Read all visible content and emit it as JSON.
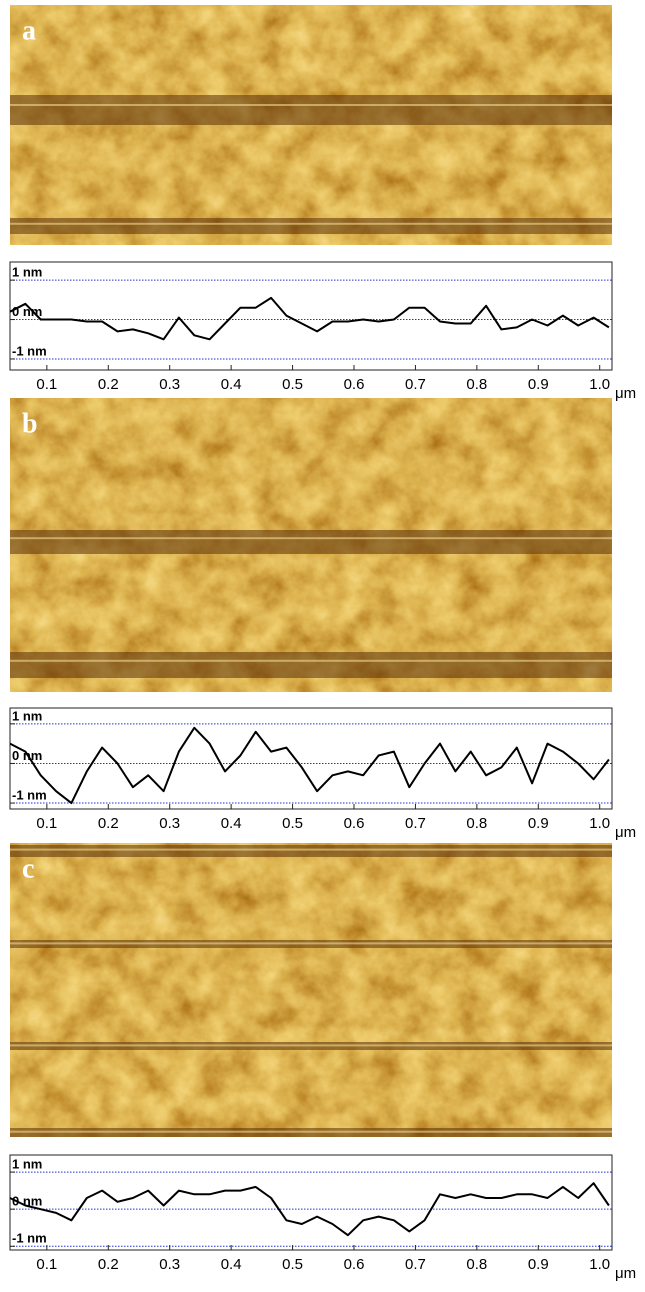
{
  "chart_data": [
    {
      "type": "line",
      "panel_label": "a",
      "xlabel": "μm",
      "color": "#000000",
      "grid": true,
      "grid_color": "#2233cc",
      "x": [
        0.04,
        0.065,
        0.09,
        0.115,
        0.14,
        0.165,
        0.19,
        0.215,
        0.24,
        0.265,
        0.29,
        0.315,
        0.34,
        0.365,
        0.39,
        0.415,
        0.44,
        0.465,
        0.49,
        0.515,
        0.54,
        0.565,
        0.59,
        0.615,
        0.64,
        0.665,
        0.69,
        0.715,
        0.74,
        0.765,
        0.79,
        0.815,
        0.84,
        0.865,
        0.89,
        0.915,
        0.94,
        0.965,
        0.99,
        1.015
      ],
      "values": [
        0.2,
        0.4,
        0.0,
        0.0,
        0.0,
        -0.05,
        -0.05,
        -0.3,
        -0.25,
        -0.35,
        -0.5,
        0.05,
        -0.4,
        -0.5,
        -0.1,
        0.3,
        0.3,
        0.55,
        0.1,
        -0.1,
        -0.3,
        -0.05,
        -0.05,
        0.0,
        -0.05,
        0.0,
        0.3,
        0.3,
        -0.05,
        -0.1,
        -0.1,
        0.35,
        -0.25,
        -0.2,
        0.0,
        -0.15,
        0.1,
        -0.15,
        0.05,
        -0.2
      ],
      "xlim": [
        0.04,
        1.02
      ],
      "ylim": [
        -1.28,
        1.46
      ],
      "xticks": [
        0.1,
        0.2,
        0.3,
        0.4,
        0.5,
        0.6,
        0.7,
        0.8,
        0.9,
        {
          "value": 1.0,
          "label": "1.0"
        }
      ],
      "yticks": [
        {
          "value": 1,
          "label": "1 nm"
        },
        {
          "value": 0,
          "label": "0 nm"
        },
        {
          "value": -1,
          "label": "-1 nm"
        }
      ]
    },
    {
      "type": "line",
      "panel_label": "b",
      "xlabel": "μm",
      "color": "#000000",
      "grid": true,
      "grid_color": "#2233cc",
      "x": [
        0.04,
        0.065,
        0.09,
        0.115,
        0.14,
        0.165,
        0.19,
        0.215,
        0.24,
        0.265,
        0.29,
        0.315,
        0.34,
        0.365,
        0.39,
        0.415,
        0.44,
        0.465,
        0.49,
        0.515,
        0.54,
        0.565,
        0.59,
        0.615,
        0.64,
        0.665,
        0.69,
        0.715,
        0.74,
        0.765,
        0.79,
        0.815,
        0.84,
        0.865,
        0.89,
        0.915,
        0.94,
        0.965,
        0.99,
        1.015
      ],
      "values": [
        0.5,
        0.3,
        -0.3,
        -0.7,
        -1.0,
        -0.2,
        0.4,
        0.0,
        -0.6,
        -0.3,
        -0.7,
        0.3,
        0.9,
        0.5,
        -0.2,
        0.2,
        0.8,
        0.3,
        0.4,
        -0.1,
        -0.7,
        -0.3,
        -0.2,
        -0.3,
        0.2,
        0.3,
        -0.6,
        0.0,
        0.5,
        -0.2,
        0.3,
        -0.3,
        -0.1,
        0.4,
        -0.5,
        0.5,
        0.3,
        0.0,
        -0.4,
        0.1
      ],
      "xlim": [
        0.04,
        1.02
      ],
      "ylim": [
        -1.15,
        1.4
      ],
      "xticks": [
        0.1,
        0.2,
        0.3,
        0.4,
        0.5,
        0.6,
        0.7,
        0.8,
        0.9,
        {
          "value": 1.0,
          "label": "1.0"
        }
      ],
      "yticks": [
        {
          "value": 1,
          "label": "1 nm"
        },
        {
          "value": 0,
          "label": "0 nm"
        },
        {
          "value": -1,
          "label": "-1 nm"
        }
      ]
    },
    {
      "type": "line",
      "panel_label": "c",
      "xlabel": "μm",
      "color": "#000000",
      "grid": true,
      "grid_color": "#2233cc",
      "x": [
        0.04,
        0.065,
        0.09,
        0.115,
        0.14,
        0.165,
        0.19,
        0.215,
        0.24,
        0.265,
        0.29,
        0.315,
        0.34,
        0.365,
        0.39,
        0.415,
        0.44,
        0.465,
        0.49,
        0.515,
        0.54,
        0.565,
        0.59,
        0.615,
        0.64,
        0.665,
        0.69,
        0.715,
        0.74,
        0.765,
        0.79,
        0.815,
        0.84,
        0.865,
        0.89,
        0.915,
        0.94,
        0.965,
        0.99,
        1.015
      ],
      "values": [
        0.3,
        0.1,
        0.0,
        -0.1,
        -0.3,
        0.3,
        0.5,
        0.2,
        0.3,
        0.5,
        0.1,
        0.5,
        0.4,
        0.4,
        0.5,
        0.5,
        0.6,
        0.3,
        -0.3,
        -0.4,
        -0.2,
        -0.4,
        -0.7,
        -0.3,
        -0.2,
        -0.3,
        -0.6,
        -0.3,
        0.4,
        0.3,
        0.4,
        0.3,
        0.3,
        0.4,
        0.4,
        0.3,
        0.6,
        0.3,
        0.7,
        0.1
      ],
      "xlim": [
        0.04,
        1.02
      ],
      "ylim": [
        -1.1,
        1.46
      ],
      "xticks": [
        0.1,
        0.2,
        0.3,
        0.4,
        0.5,
        0.6,
        0.7,
        0.8,
        0.9,
        {
          "value": 1.0,
          "label": "1.0"
        }
      ],
      "yticks": [
        {
          "value": 1,
          "label": "1 nm"
        },
        {
          "value": 0,
          "label": "0 nm"
        },
        {
          "value": -1,
          "label": "-1 nm"
        }
      ]
    }
  ]
}
